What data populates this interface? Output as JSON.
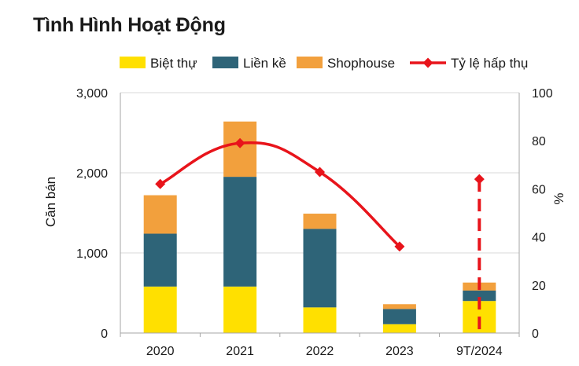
{
  "title": "Tình Hình Hoạt Động",
  "chart_data": {
    "type": "bar",
    "stacked": true,
    "categories": [
      "2020",
      "2021",
      "2022",
      "2023",
      "9T/2024"
    ],
    "series": [
      {
        "name": "Biệt thự",
        "type": "bar",
        "axis": "left",
        "color": "#FFE000",
        "values": [
          580,
          580,
          320,
          110,
          400
        ]
      },
      {
        "name": "Liền kề",
        "type": "bar",
        "axis": "left",
        "color": "#2E6478",
        "values": [
          660,
          1370,
          980,
          190,
          130
        ]
      },
      {
        "name": "Shophouse",
        "type": "bar",
        "axis": "left",
        "color": "#F2A03D",
        "values": [
          480,
          690,
          190,
          60,
          100
        ]
      },
      {
        "name": "Tỷ lệ hấp thụ",
        "type": "line",
        "axis": "right",
        "color": "#E8141B",
        "values": [
          62,
          79,
          67,
          36,
          64
        ],
        "smooth": true,
        "last_segment_dashed": true
      }
    ],
    "ylabel_left": "Căn bán",
    "ylabel_right": "%",
    "ylim_left": [
      0,
      3000
    ],
    "ylim_right": [
      0,
      100
    ],
    "yticks_left": [
      "0",
      "1,000",
      "2,000",
      "3,000"
    ],
    "yticks_right": [
      "0",
      "20",
      "40",
      "60",
      "80",
      "100"
    ],
    "yticks_left_values": [
      0,
      1000,
      2000,
      3000
    ],
    "yticks_right_values": [
      0,
      20,
      40,
      60,
      80,
      100
    ],
    "grid": true,
    "legend_position": "top"
  }
}
